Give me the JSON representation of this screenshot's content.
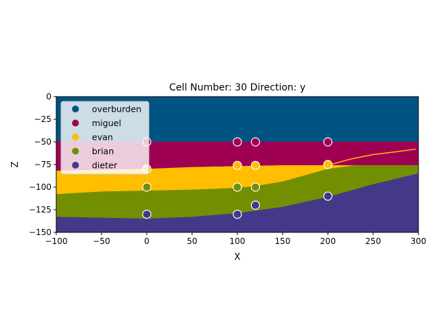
{
  "chart_data": {
    "type": "section",
    "title": "Cell Number: 30 Direction: y",
    "xlabel": "X",
    "ylabel": "Z",
    "xlim": [
      -100,
      300
    ],
    "ylim": [
      -150,
      0
    ],
    "xticks": [
      -100,
      -50,
      0,
      50,
      100,
      150,
      200,
      250,
      300
    ],
    "yticks": [
      0,
      -25,
      -50,
      -75,
      -100,
      -125,
      -150
    ],
    "grid": false,
    "legend_position": "top-left",
    "layers": [
      {
        "name": "overburden",
        "color": "#015482"
      },
      {
        "name": "miguel",
        "color": "#9f0052"
      },
      {
        "name": "evan",
        "color": "#ffbe00"
      },
      {
        "name": "brian",
        "color": "#728f02"
      },
      {
        "name": "dieter",
        "color": "#443988"
      }
    ],
    "boundaries": {
      "overburden_miguel": {
        "x": [
          -100,
          300
        ],
        "z": [
          -50,
          -50
        ]
      },
      "miguel_evan": {
        "x": [
          -100,
          -50,
          0,
          50,
          100,
          150,
          200,
          250,
          300
        ],
        "z": [
          -82,
          -81,
          -80,
          -78,
          -77,
          -76,
          -76,
          -76,
          -76
        ]
      },
      "evan_brian": {
        "x": [
          -100,
          -50,
          0,
          50,
          100,
          120,
          150,
          200,
          230,
          260,
          300
        ],
        "z": [
          -108,
          -105,
          -104,
          -103,
          -101,
          -99,
          -94,
          -80,
          -76,
          -76,
          -76
        ]
      },
      "brian_dieter": {
        "x": [
          -100,
          -50,
          0,
          50,
          100,
          150,
          200,
          250,
          300
        ],
        "z": [
          -133,
          -134,
          -135,
          -133,
          -129,
          -122,
          -111,
          -97,
          -85
        ]
      }
    },
    "fault_line": {
      "color": "#ffbe00",
      "x": [
        200,
        225,
        250,
        275,
        297
      ],
      "z": [
        -76,
        -69,
        -64,
        -61,
        -58
      ]
    },
    "surface_points": [
      {
        "x": 0,
        "z": -50,
        "layer": "miguel"
      },
      {
        "x": 100,
        "z": -50,
        "layer": "miguel"
      },
      {
        "x": 120,
        "z": -50,
        "layer": "miguel"
      },
      {
        "x": 200,
        "z": -50,
        "layer": "miguel"
      },
      {
        "x": 0,
        "z": -80,
        "layer": "evan"
      },
      {
        "x": 100,
        "z": -76,
        "layer": "evan"
      },
      {
        "x": 120,
        "z": -76,
        "layer": "evan"
      },
      {
        "x": 200,
        "z": -75,
        "layer": "evan"
      },
      {
        "x": 0,
        "z": -100,
        "layer": "brian"
      },
      {
        "x": 100,
        "z": -100,
        "layer": "brian"
      },
      {
        "x": 120,
        "z": -100,
        "layer": "brian"
      },
      {
        "x": 120,
        "z": -120,
        "layer": "dieter"
      },
      {
        "x": 200,
        "z": -110,
        "layer": "dieter"
      },
      {
        "x": 0,
        "z": -130,
        "layer": "dieter"
      },
      {
        "x": 100,
        "z": -130,
        "layer": "dieter"
      }
    ]
  }
}
